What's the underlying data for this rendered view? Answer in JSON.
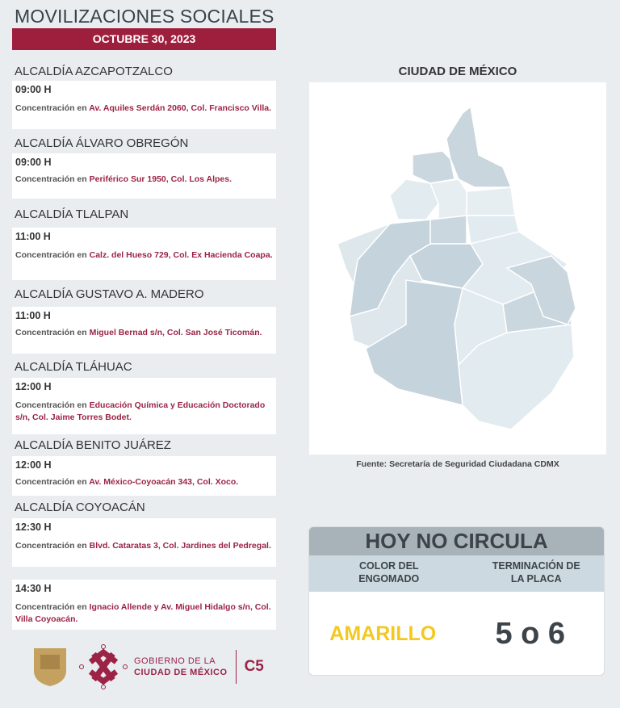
{
  "header": {
    "title": "MOVILIZACIONES SOCIALES",
    "date": "OCTUBRE 30, 2023"
  },
  "events": [
    {
      "alcaldia": "ALCALDÍA AZCAPOTZALCO",
      "time": "09:00 H",
      "type": "Concentración en",
      "address": "Av. Aquiles Serdán 2060, Col. Francisco Villa."
    },
    {
      "alcaldia": "ALCALDÍA ÁLVARO OBREGÓN",
      "time": "09:00 H",
      "type": "Concentración en",
      "address": "Periférico Sur 1950, Col. Los Alpes."
    },
    {
      "alcaldia": "ALCALDÍA TLALPAN",
      "time": "11:00 H",
      "type": "Concentración en",
      "address": "Calz. del Hueso 729, Col. Ex Hacienda Coapa."
    },
    {
      "alcaldia": "ALCALDÍA GUSTAVO A. MADERO",
      "time": "11:00 H",
      "type": "Concentración en",
      "address": "Miguel Bernad s/n, Col. San José Ticomán."
    },
    {
      "alcaldia": "ALCALDÍA TLÁHUAC",
      "time": "12:00 H",
      "type": "Concentración en",
      "address": "Educación Química y Educación Doctorado s/n, Col. Jaime Torres Bodet."
    },
    {
      "alcaldia": "ALCALDÍA BENITO JUÁREZ",
      "time": "12:00 H",
      "type": "Concentración en",
      "address": "Av. México-Coyoacán 343, Col. Xoco."
    },
    {
      "alcaldia": "ALCALDÍA COYOACÁN",
      "time": "12:30 H",
      "type": "Concentración en",
      "address": "Blvd. Cataratas 3, Col. Jardines del Pedregal."
    },
    {
      "alcaldia": "",
      "time": "14:30 H",
      "type": "Concentración en",
      "address": "Ignacio Allende y Av. Miguel Hidalgo s/n, Col. Villa Coyoacán."
    }
  ],
  "map": {
    "title": "CIUDAD DE MÉXICO",
    "source": "Fuente: Secretaría de Seguridad Ciudadana CDMX",
    "fill": "#d3dfe6",
    "stroke": "#ffffff"
  },
  "hoy_no_circula": {
    "title": "HOY NO CIRCULA",
    "col1": "COLOR DEL ENGOMADO",
    "col2": "TERMINACIÓN DE LA PLACA",
    "color": "AMARILLO",
    "color_hex": "#f3c91f",
    "plates": "5 o 6"
  },
  "footer": {
    "gov_line1": "GOBIERNO DE LA",
    "gov_line2": "CIUDAD DE MÉXICO",
    "c5": "C5",
    "brand_color": "#9b2346"
  }
}
